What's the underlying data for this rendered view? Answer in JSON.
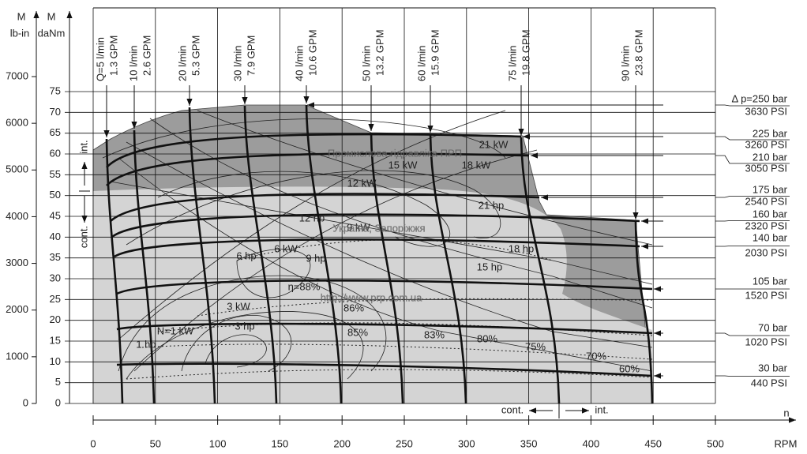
{
  "axes": {
    "lbin": {
      "title1": "M",
      "title2": "lb-in",
      "ticks": [
        0,
        1000,
        2000,
        3000,
        4000,
        5000,
        6000,
        7000
      ]
    },
    "danm": {
      "title1": "M",
      "title2": "daNm",
      "ticks": [
        0,
        5,
        10,
        15,
        20,
        25,
        30,
        35,
        40,
        45,
        50,
        55,
        60,
        65,
        70,
        75
      ]
    },
    "rpm": {
      "title1": "n",
      "title2": "RPM",
      "ticks": [
        0,
        50,
        100,
        150,
        200,
        250,
        300,
        350,
        400,
        450,
        500
      ]
    }
  },
  "flows": [
    {
      "lpm": "Q=5 l/min",
      "gpm": "1.3 GPM"
    },
    {
      "lpm": "10 l/min",
      "gpm": "2.6 GPM"
    },
    {
      "lpm": "20 l/min",
      "gpm": "5.3 GPM"
    },
    {
      "lpm": "30 l/min",
      "gpm": "7.9 GPM"
    },
    {
      "lpm": "40 l/min",
      "gpm": "10.6 GPM"
    },
    {
      "lpm": "50 l/min",
      "gpm": "13.2 GPM"
    },
    {
      "lpm": "60 l/min",
      "gpm": "15.9 GPM"
    },
    {
      "lpm": "75 l/min",
      "gpm": "19.8 GPM"
    },
    {
      "lpm": "90 l/min",
      "gpm": "23.8 GPM"
    }
  ],
  "pressures": [
    {
      "bar": "Δ p=250 bar",
      "psi": "3630 PSI"
    },
    {
      "bar": "225 bar",
      "psi": "3260 PSI"
    },
    {
      "bar": "210 bar",
      "psi": "3050 PSI"
    },
    {
      "bar": "175 bar",
      "psi": "2540 PSI"
    },
    {
      "bar": "160 bar",
      "psi": "2320 PSI"
    },
    {
      "bar": "140 bar",
      "psi": "2030 PSI"
    },
    {
      "bar": "105 bar",
      "psi": "1520 PSI"
    },
    {
      "bar": "70 bar",
      "psi": "1020 PSI"
    },
    {
      "bar": "30 bar",
      "psi": "440 PSI"
    }
  ],
  "annotations": [
    "21 kW",
    "15 kW",
    "18 kW",
    "12 kW",
    "21 hp",
    "12 hp",
    "9 kW",
    "18 hp",
    "15 hp",
    "6 hp",
    "6 kW",
    "9 hp",
    "η=88%",
    "3 kW",
    "86%",
    "3 hp",
    "85%",
    "83%",
    "80%",
    "75%",
    "70%",
    "60%",
    "N=1 kW",
    "1 hp"
  ],
  "watermarks": [
    "Промислова гідравліка  ПРП",
    "Україна, Запоріжжя",
    "http://www.prp.com.ua"
  ],
  "zones": {
    "int_left": "int.",
    "cont_left": "cont.",
    "cont_bottom": "cont.",
    "int_bottom": "int."
  }
}
